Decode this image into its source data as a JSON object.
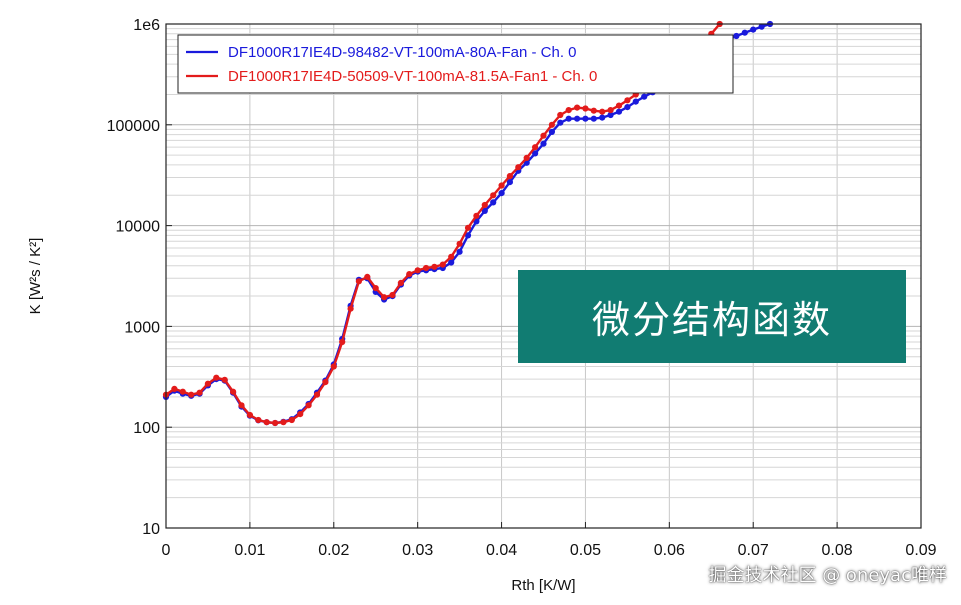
{
  "chart_data": {
    "type": "line",
    "title": "",
    "xlabel": "Rth  [K/W]",
    "ylabel": "K  [W²s / K²]",
    "xlim": [
      0,
      0.09
    ],
    "ylim": [
      10,
      1000000
    ],
    "yscale": "log",
    "grid": true,
    "legend_position": "top-left",
    "x_ticks": [
      0,
      0.01,
      0.02,
      0.03,
      0.04,
      0.05,
      0.06,
      0.07,
      0.08,
      0.09
    ],
    "x_tick_labels": [
      "0",
      "0.01",
      "0.02",
      "0.03",
      "0.04",
      "0.05",
      "0.06",
      "0.07",
      "0.08",
      "0.09"
    ],
    "y_ticks": [
      10,
      100,
      1000,
      10000,
      100000,
      1000000
    ],
    "y_tick_labels": [
      "10",
      "100",
      "1000",
      "10000",
      "100000",
      "1e6"
    ],
    "series": [
      {
        "name": "DF1000R17IE4D-98482-VT-100mA-80A-Fan - Ch. 0",
        "color": "#1a1adc",
        "points": [
          [
            0,
            200
          ],
          [
            0.001,
            230
          ],
          [
            0.002,
            215
          ],
          [
            0.003,
            205
          ],
          [
            0.004,
            215
          ],
          [
            0.005,
            260
          ],
          [
            0.006,
            300
          ],
          [
            0.007,
            290
          ],
          [
            0.008,
            220
          ],
          [
            0.009,
            160
          ],
          [
            0.01,
            130
          ],
          [
            0.011,
            117
          ],
          [
            0.012,
            112
          ],
          [
            0.013,
            110
          ],
          [
            0.014,
            113
          ],
          [
            0.015,
            120
          ],
          [
            0.016,
            140
          ],
          [
            0.017,
            170
          ],
          [
            0.018,
            220
          ],
          [
            0.019,
            290
          ],
          [
            0.02,
            420
          ],
          [
            0.021,
            750
          ],
          [
            0.022,
            1600
          ],
          [
            0.023,
            2900
          ],
          [
            0.024,
            3000
          ],
          [
            0.025,
            2200
          ],
          [
            0.026,
            1850
          ],
          [
            0.027,
            2000
          ],
          [
            0.028,
            2600
          ],
          [
            0.029,
            3200
          ],
          [
            0.03,
            3500
          ],
          [
            0.031,
            3600
          ],
          [
            0.032,
            3700
          ],
          [
            0.033,
            3800
          ],
          [
            0.034,
            4300
          ],
          [
            0.035,
            5500
          ],
          [
            0.036,
            8000
          ],
          [
            0.037,
            11000
          ],
          [
            0.038,
            14000
          ],
          [
            0.039,
            17000
          ],
          [
            0.04,
            21000
          ],
          [
            0.041,
            27000
          ],
          [
            0.042,
            35000
          ],
          [
            0.043,
            42000
          ],
          [
            0.044,
            52000
          ],
          [
            0.045,
            65000
          ],
          [
            0.046,
            85000
          ],
          [
            0.047,
            105000
          ],
          [
            0.048,
            115000
          ],
          [
            0.049,
            115000
          ],
          [
            0.05,
            115000
          ],
          [
            0.051,
            115000
          ],
          [
            0.052,
            118000
          ],
          [
            0.053,
            125000
          ],
          [
            0.054,
            135000
          ],
          [
            0.055,
            150000
          ],
          [
            0.056,
            170000
          ],
          [
            0.057,
            190000
          ],
          [
            0.058,
            210000
          ],
          [
            0.059,
            240000
          ],
          [
            0.06,
            270000
          ],
          [
            0.061,
            310000
          ],
          [
            0.062,
            370000
          ],
          [
            0.063,
            440000
          ],
          [
            0.064,
            510000
          ],
          [
            0.065,
            580000
          ],
          [
            0.066,
            640000
          ],
          [
            0.067,
            700000
          ],
          [
            0.068,
            760000
          ],
          [
            0.069,
            820000
          ],
          [
            0.07,
            880000
          ],
          [
            0.071,
            940000
          ],
          [
            0.072,
            1000000
          ]
        ]
      },
      {
        "name": "DF1000R17IE4D-50509-VT-100mA-81.5A-Fan1 - Ch. 0",
        "color": "#e31b1b",
        "points": [
          [
            0,
            210
          ],
          [
            0.001,
            240
          ],
          [
            0.002,
            225
          ],
          [
            0.003,
            210
          ],
          [
            0.004,
            220
          ],
          [
            0.005,
            270
          ],
          [
            0.006,
            310
          ],
          [
            0.007,
            295
          ],
          [
            0.008,
            225
          ],
          [
            0.009,
            165
          ],
          [
            0.01,
            132
          ],
          [
            0.011,
            118
          ],
          [
            0.012,
            112
          ],
          [
            0.013,
            110
          ],
          [
            0.014,
            112
          ],
          [
            0.015,
            118
          ],
          [
            0.016,
            135
          ],
          [
            0.017,
            165
          ],
          [
            0.018,
            210
          ],
          [
            0.019,
            280
          ],
          [
            0.02,
            400
          ],
          [
            0.021,
            700
          ],
          [
            0.022,
            1500
          ],
          [
            0.023,
            2800
          ],
          [
            0.024,
            3100
          ],
          [
            0.025,
            2400
          ],
          [
            0.026,
            1950
          ],
          [
            0.027,
            2050
          ],
          [
            0.028,
            2700
          ],
          [
            0.029,
            3300
          ],
          [
            0.03,
            3600
          ],
          [
            0.031,
            3800
          ],
          [
            0.032,
            3900
          ],
          [
            0.033,
            4100
          ],
          [
            0.034,
            4900
          ],
          [
            0.035,
            6600
          ],
          [
            0.036,
            9500
          ],
          [
            0.037,
            12500
          ],
          [
            0.038,
            16000
          ],
          [
            0.039,
            20000
          ],
          [
            0.04,
            25000
          ],
          [
            0.041,
            31000
          ],
          [
            0.042,
            38000
          ],
          [
            0.043,
            47000
          ],
          [
            0.044,
            60000
          ],
          [
            0.045,
            78000
          ],
          [
            0.046,
            100000
          ],
          [
            0.047,
            125000
          ],
          [
            0.048,
            140000
          ],
          [
            0.049,
            148000
          ],
          [
            0.05,
            145000
          ],
          [
            0.051,
            138000
          ],
          [
            0.052,
            135000
          ],
          [
            0.053,
            140000
          ],
          [
            0.054,
            155000
          ],
          [
            0.055,
            175000
          ],
          [
            0.056,
            200000
          ],
          [
            0.057,
            230000
          ],
          [
            0.058,
            260000
          ],
          [
            0.059,
            290000
          ],
          [
            0.06,
            320000
          ],
          [
            0.061,
            360000
          ],
          [
            0.062,
            420000
          ],
          [
            0.063,
            520000
          ],
          [
            0.064,
            650000
          ],
          [
            0.065,
            800000
          ],
          [
            0.066,
            1000000
          ]
        ]
      }
    ]
  },
  "overlay": {
    "banner_text": "微分结构函数",
    "banner_color": "#117c72",
    "watermark_text": "掘金技术社区 @ oneyac唯样"
  }
}
